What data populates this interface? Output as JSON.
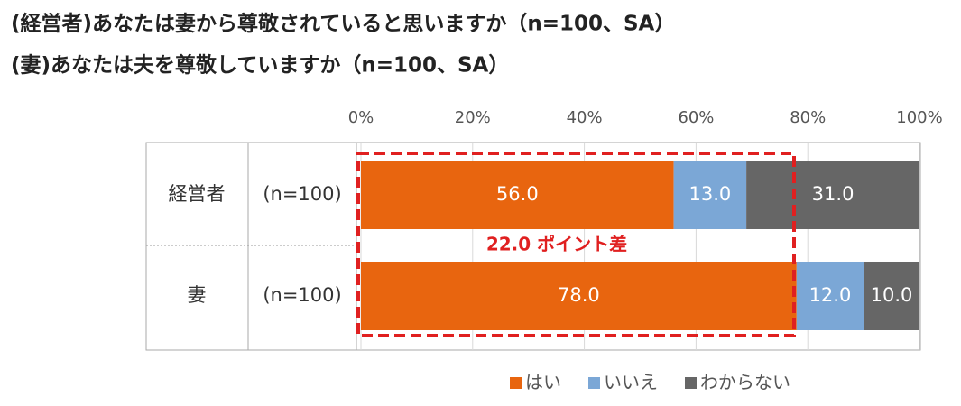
{
  "chart_data": {
    "type": "stacked_bar_horizontal",
    "title": "(経営者)あなたは妻から尊敬されていると思いますか（n=100、SA）",
    "subtitle": "(妻)あなたは夫を尊敬していますか（n=100、SA）",
    "categories": [
      "経営者",
      "妻"
    ],
    "sample_labels": [
      "(n=100)",
      "(n=100)"
    ],
    "series": [
      {
        "name": "はい",
        "color": "#e8650f",
        "values": [
          56,
          78
        ],
        "value_labels": [
          "56.0",
          "78.0"
        ]
      },
      {
        "name": "いいえ",
        "color": "#7ba7d6",
        "values": [
          13,
          12
        ],
        "value_labels": [
          "13.0",
          "12.0"
        ]
      },
      {
        "name": "わからない",
        "color": "#666666",
        "values": [
          31,
          10
        ],
        "value_labels": [
          "31.0",
          "10.0"
        ]
      }
    ],
    "xlim": [
      0,
      100
    ],
    "xticks": [
      {
        "value": 0,
        "label": "0%"
      },
      {
        "value": 20,
        "label": "20%"
      },
      {
        "value": 40,
        "label": "40%"
      },
      {
        "value": 60,
        "label": "60%"
      },
      {
        "value": 80,
        "label": "80%"
      },
      {
        "value": 100,
        "label": "100%"
      }
    ],
    "grid": true,
    "annotation": "22.0 ポイント差"
  }
}
